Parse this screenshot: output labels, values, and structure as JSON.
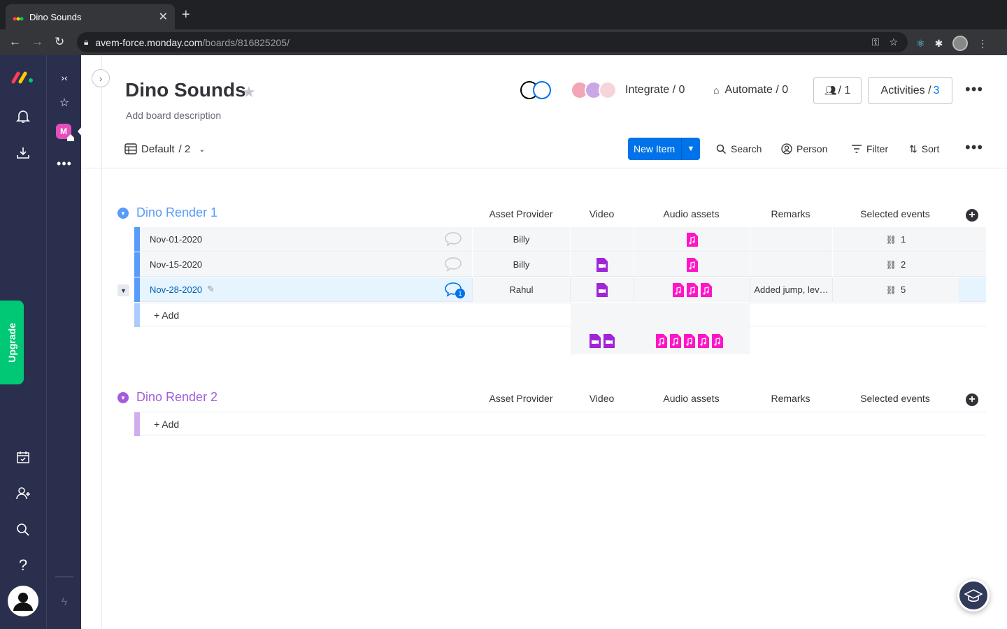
{
  "browser": {
    "tab_title": "Dino Sounds",
    "url_host": "avem-force.monday.com",
    "url_path": "/boards/816825205/"
  },
  "rail": {
    "upgrade_label": "Upgrade"
  },
  "workspace": {
    "badge_letter": "M"
  },
  "board": {
    "title": "Dino Sounds",
    "description": "Add board description",
    "integrate_label": "Integrate / 0",
    "automate_label": "Automate / 0",
    "members_label": "/ 1",
    "activities_label": "Activities /",
    "activities_count": "3"
  },
  "toolbar": {
    "view_label": "Default",
    "view_count": "/ 2",
    "new_item_label": "New Item",
    "search_label": "Search",
    "person_label": "Person",
    "filter_label": "Filter",
    "sort_label": "Sort"
  },
  "columns": {
    "asset_provider": "Asset Provider",
    "video": "Video",
    "audio_assets": "Audio assets",
    "remarks": "Remarks",
    "selected_events": "Selected events"
  },
  "groups": [
    {
      "name": "Dino Render 1",
      "color": "#579bfc",
      "add_label": "+ Add",
      "items": [
        {
          "name": "Nov-01-2020",
          "provider": "Billy",
          "video_count": 0,
          "audio_count": 1,
          "remarks": "",
          "events": "1",
          "updates": ""
        },
        {
          "name": "Nov-15-2020",
          "provider": "Billy",
          "video_count": 1,
          "audio_count": 1,
          "remarks": "",
          "events": "2",
          "updates": ""
        },
        {
          "name": "Nov-28-2020",
          "provider": "Rahul",
          "video_count": 1,
          "audio_count": 3,
          "remarks": "Added jump, lev…",
          "events": "5",
          "updates": "1"
        }
      ]
    },
    {
      "name": "Dino Render 2",
      "color": "#a25ddc",
      "add_label": "+ Add",
      "items": []
    }
  ],
  "colors": {
    "video_file": "#a125d6",
    "audio_file": "#ff15c5",
    "primary": "#0073ea",
    "rail_bg": "#292f4c",
    "upgrade": "#00c875"
  }
}
